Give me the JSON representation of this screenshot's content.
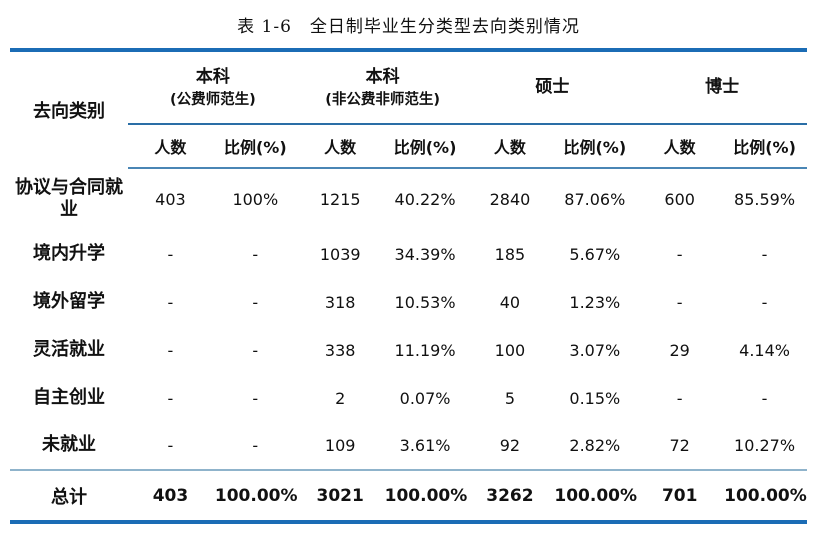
{
  "title": {
    "prefix": "表 1-6",
    "text": "全日制毕业生分类型去向类别情况"
  },
  "table": {
    "row_header_label": "去向类别",
    "groups": [
      {
        "line1": "本科",
        "line2": "(公费师范生)"
      },
      {
        "line1": "本科",
        "line2": "(非公费非师范生)"
      },
      {
        "line1": "硕士",
        "line2": ""
      },
      {
        "line1": "博士",
        "line2": ""
      }
    ],
    "subheaders": [
      "人数",
      "比例(%)"
    ],
    "rows": [
      {
        "label": "协议与合同就业",
        "values": [
          "403",
          "100%",
          "1215",
          "40.22%",
          "2840",
          "87.06%",
          "600",
          "85.59%"
        ]
      },
      {
        "label": "境内升学",
        "values": [
          "-",
          "-",
          "1039",
          "34.39%",
          "185",
          "5.67%",
          "-",
          "-"
        ]
      },
      {
        "label": "境外留学",
        "values": [
          "-",
          "-",
          "318",
          "10.53%",
          "40",
          "1.23%",
          "-",
          "-"
        ]
      },
      {
        "label": "灵活就业",
        "values": [
          "-",
          "-",
          "338",
          "11.19%",
          "100",
          "3.07%",
          "29",
          "4.14%"
        ]
      },
      {
        "label": "自主创业",
        "values": [
          "-",
          "-",
          "2",
          "0.07%",
          "5",
          "0.15%",
          "-",
          "-"
        ]
      },
      {
        "label": "未就业",
        "values": [
          "-",
          "-",
          "109",
          "3.61%",
          "92",
          "2.82%",
          "72",
          "10.27%"
        ]
      }
    ],
    "total_row": {
      "label": "总计",
      "values": [
        "403",
        "100.00%",
        "3021",
        "100.00%",
        "3262",
        "100.00%",
        "701",
        "100.00%"
      ]
    }
  },
  "colors": {
    "thick_rule": "#1b6cb5",
    "group_rule": "#2a6ea6",
    "subheader_rule": "#4a86b5",
    "pretotal_rule": "#8fb3cb",
    "text": "#111111"
  }
}
